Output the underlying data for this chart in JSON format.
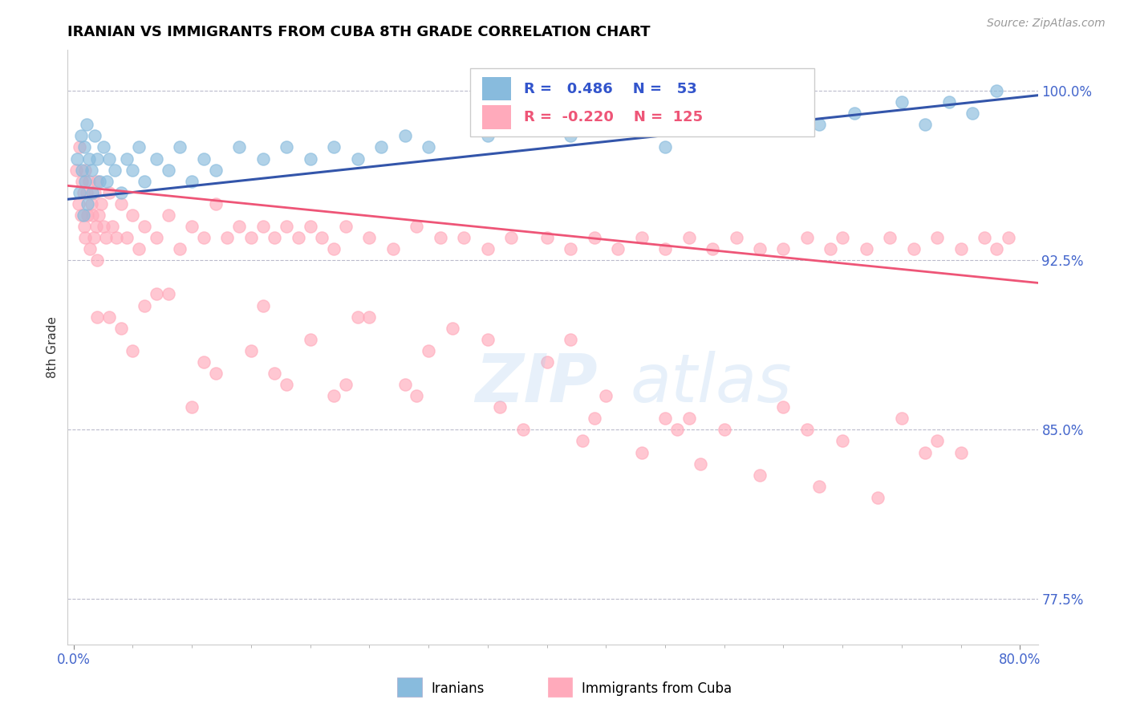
{
  "title": "IRANIAN VS IMMIGRANTS FROM CUBA 8TH GRADE CORRELATION CHART",
  "source": "Source: ZipAtlas.com",
  "xlabel_vals": [
    0.0,
    80.0
  ],
  "ylabel_ticks": [
    "100.0%",
    "92.5%",
    "85.0%",
    "77.5%"
  ],
  "ylabel_vals": [
    100.0,
    92.5,
    85.0,
    77.5
  ],
  "ymin": 75.5,
  "ymax": 101.8,
  "xmin": -0.5,
  "xmax": 81.5,
  "legend_blue_r": "0.486",
  "legend_blue_n": "53",
  "legend_pink_r": "-0.220",
  "legend_pink_n": "125",
  "legend_label_blue": "Iranians",
  "legend_label_pink": "Immigrants from Cuba",
  "ylabel_label": "8th Grade",
  "blue_color": "#88BBDD",
  "pink_color": "#FFAABB",
  "trendline_blue": "#3355AA",
  "trendline_pink": "#EE5577",
  "blue_trend_x": [
    -0.5,
    81.5
  ],
  "blue_trend_y": [
    95.2,
    99.8
  ],
  "pink_trend_x": [
    -0.5,
    81.5
  ],
  "pink_trend_y": [
    95.8,
    91.5
  ],
  "blue_x": [
    0.3,
    0.5,
    0.6,
    0.7,
    0.8,
    0.9,
    1.0,
    1.1,
    1.2,
    1.3,
    1.5,
    1.6,
    1.8,
    2.0,
    2.2,
    2.5,
    2.8,
    3.0,
    3.5,
    4.0,
    4.5,
    5.0,
    5.5,
    6.0,
    7.0,
    8.0,
    9.0,
    10.0,
    11.0,
    12.0,
    14.0,
    16.0,
    18.0,
    20.0,
    22.0,
    24.0,
    26.0,
    28.0,
    30.0,
    35.0,
    38.0,
    42.0,
    45.0,
    50.0,
    55.0,
    60.0,
    63.0,
    66.0,
    70.0,
    72.0,
    74.0,
    76.0,
    78.0
  ],
  "blue_y": [
    97.0,
    95.5,
    98.0,
    96.5,
    94.5,
    97.5,
    96.0,
    98.5,
    95.0,
    97.0,
    96.5,
    95.5,
    98.0,
    97.0,
    96.0,
    97.5,
    96.0,
    97.0,
    96.5,
    95.5,
    97.0,
    96.5,
    97.5,
    96.0,
    97.0,
    96.5,
    97.5,
    96.0,
    97.0,
    96.5,
    97.5,
    97.0,
    97.5,
    97.0,
    97.5,
    97.0,
    97.5,
    98.0,
    97.5,
    98.0,
    98.5,
    98.0,
    98.5,
    97.5,
    98.5,
    99.0,
    98.5,
    99.0,
    99.5,
    98.5,
    99.5,
    99.0,
    100.0
  ],
  "pink_x": [
    0.2,
    0.4,
    0.5,
    0.6,
    0.7,
    0.8,
    0.9,
    1.0,
    1.0,
    1.1,
    1.2,
    1.3,
    1.4,
    1.5,
    1.6,
    1.7,
    1.8,
    1.9,
    2.0,
    2.0,
    2.1,
    2.3,
    2.5,
    2.7,
    3.0,
    3.3,
    3.6,
    4.0,
    4.5,
    5.0,
    5.5,
    6.0,
    7.0,
    8.0,
    9.0,
    10.0,
    11.0,
    12.0,
    13.0,
    14.0,
    15.0,
    16.0,
    17.0,
    18.0,
    19.0,
    20.0,
    21.0,
    22.0,
    23.0,
    25.0,
    27.0,
    29.0,
    31.0,
    33.0,
    35.0,
    37.0,
    40.0,
    42.0,
    44.0,
    46.0,
    48.0,
    50.0,
    52.0,
    54.0,
    56.0,
    58.0,
    60.0,
    62.0,
    64.0,
    65.0,
    67.0,
    69.0,
    71.0,
    73.0,
    75.0,
    77.0,
    78.0,
    79.0,
    2.0,
    4.0,
    8.0,
    15.0,
    20.0,
    25.0,
    30.0,
    35.0,
    40.0,
    12.0,
    18.0,
    6.0,
    3.0,
    10.0,
    50.0,
    45.0,
    55.0,
    60.0,
    65.0,
    70.0,
    75.0,
    28.0,
    22.0,
    38.0,
    43.0,
    48.0,
    53.0,
    58.0,
    63.0,
    68.0,
    73.0,
    7.0,
    16.0,
    24.0,
    32.0,
    42.0,
    52.0,
    62.0,
    72.0,
    5.0,
    11.0,
    17.0,
    23.0,
    29.0,
    36.0,
    44.0,
    51.0
  ],
  "pink_y": [
    96.5,
    95.0,
    97.5,
    94.5,
    96.0,
    95.5,
    94.0,
    96.5,
    93.5,
    95.5,
    94.5,
    96.0,
    93.0,
    95.0,
    94.5,
    93.5,
    95.5,
    94.0,
    96.0,
    92.5,
    94.5,
    95.0,
    94.0,
    93.5,
    95.5,
    94.0,
    93.5,
    95.0,
    93.5,
    94.5,
    93.0,
    94.0,
    93.5,
    94.5,
    93.0,
    94.0,
    93.5,
    95.0,
    93.5,
    94.0,
    93.5,
    94.0,
    93.5,
    94.0,
    93.5,
    94.0,
    93.5,
    93.0,
    94.0,
    93.5,
    93.0,
    94.0,
    93.5,
    93.5,
    93.0,
    93.5,
    93.5,
    93.0,
    93.5,
    93.0,
    93.5,
    93.0,
    93.5,
    93.0,
    93.5,
    93.0,
    93.0,
    93.5,
    93.0,
    93.5,
    93.0,
    93.5,
    93.0,
    93.5,
    93.0,
    93.5,
    93.0,
    93.5,
    90.0,
    89.5,
    91.0,
    88.5,
    89.0,
    90.0,
    88.5,
    89.0,
    88.0,
    87.5,
    87.0,
    90.5,
    90.0,
    86.0,
    85.5,
    86.5,
    85.0,
    86.0,
    84.5,
    85.5,
    84.0,
    87.0,
    86.5,
    85.0,
    84.5,
    84.0,
    83.5,
    83.0,
    82.5,
    82.0,
    84.5,
    91.0,
    90.5,
    90.0,
    89.5,
    89.0,
    85.5,
    85.0,
    84.0,
    88.5,
    88.0,
    87.5,
    87.0,
    86.5,
    86.0,
    85.5,
    85.0
  ]
}
